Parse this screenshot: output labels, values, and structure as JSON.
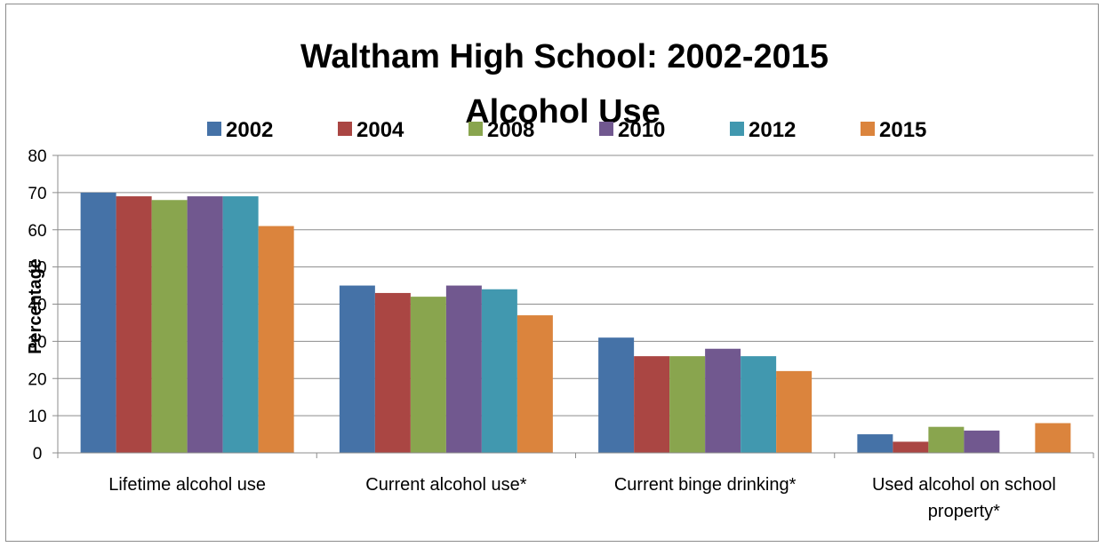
{
  "chart_data": {
    "type": "bar",
    "title": "Waltham High School: 2002-2015",
    "subtitle": "Alcohol Use",
    "ylabel": "Percentage",
    "xlabel": "",
    "ylim": [
      0,
      80
    ],
    "yticks": [
      0,
      10,
      20,
      30,
      40,
      50,
      60,
      70,
      80
    ],
    "grid": true,
    "legend_position": "top",
    "categories": [
      [
        "Lifetime alcohol use"
      ],
      [
        "Current alcohol use*"
      ],
      [
        "Current binge drinking*"
      ],
      [
        "Used alcohol on school",
        "property*"
      ]
    ],
    "series": [
      {
        "name": "2002",
        "color": "#4572A7",
        "values": [
          70,
          45,
          31,
          5
        ]
      },
      {
        "name": "2004",
        "color": "#AA4643",
        "values": [
          69,
          43,
          26,
          3
        ]
      },
      {
        "name": "2008",
        "color": "#89A54E",
        "values": [
          68,
          42,
          26,
          7
        ]
      },
      {
        "name": "2010",
        "color": "#71588F",
        "values": [
          69,
          45,
          28,
          6
        ]
      },
      {
        "name": "2012",
        "color": "#4198AF",
        "values": [
          69,
          44,
          26,
          null
        ]
      },
      {
        "name": "2015",
        "color": "#DB843D",
        "values": [
          61,
          37,
          22,
          8
        ]
      }
    ]
  }
}
